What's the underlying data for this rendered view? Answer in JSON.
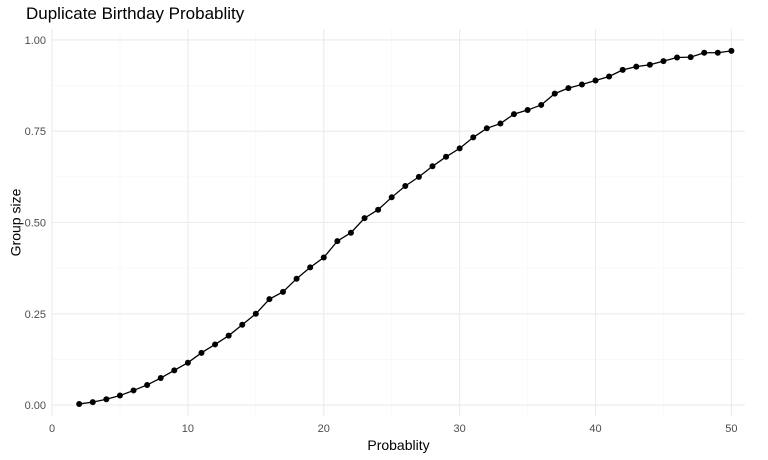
{
  "chart_data": {
    "type": "line",
    "title": "Duplicate Birthday Probablity",
    "xlabel": "Probablity",
    "ylabel": "Group size",
    "xlim": [
      0,
      51
    ],
    "ylim": [
      -0.03,
      1.03
    ],
    "x_ticks": [
      0,
      10,
      20,
      30,
      40,
      50
    ],
    "x_tick_labels": [
      "0",
      "10",
      "20",
      "30",
      "40",
      "50"
    ],
    "y_ticks": [
      0,
      0.25,
      0.5,
      0.75,
      1.0
    ],
    "y_tick_labels": [
      "0.00",
      "0.25",
      "0.50",
      "0.75",
      "1.00"
    ],
    "grid": true,
    "series_color": "#000000",
    "grid_major_color": "#ebebeb",
    "grid_minor_color": "#f5f5f5",
    "x": [
      2,
      3,
      4,
      5,
      6,
      7,
      8,
      9,
      10,
      11,
      12,
      13,
      14,
      15,
      16,
      17,
      18,
      19,
      20,
      21,
      22,
      23,
      24,
      25,
      26,
      27,
      28,
      29,
      30,
      31,
      32,
      33,
      34,
      35,
      36,
      37,
      38,
      39,
      40,
      41,
      42,
      43,
      44,
      45,
      46,
      47,
      48,
      49,
      50
    ],
    "values": [
      0.003,
      0.008,
      0.016,
      0.026,
      0.04,
      0.055,
      0.074,
      0.095,
      0.116,
      0.143,
      0.166,
      0.19,
      0.22,
      0.25,
      0.29,
      0.31,
      0.346,
      0.377,
      0.404,
      0.449,
      0.472,
      0.512,
      0.535,
      0.569,
      0.6,
      0.625,
      0.654,
      0.68,
      0.703,
      0.733,
      0.758,
      0.771,
      0.797,
      0.808,
      0.822,
      0.853,
      0.868,
      0.878,
      0.889,
      0.9,
      0.918,
      0.927,
      0.932,
      0.942,
      0.952,
      0.953,
      0.965,
      0.965,
      0.97
    ]
  }
}
